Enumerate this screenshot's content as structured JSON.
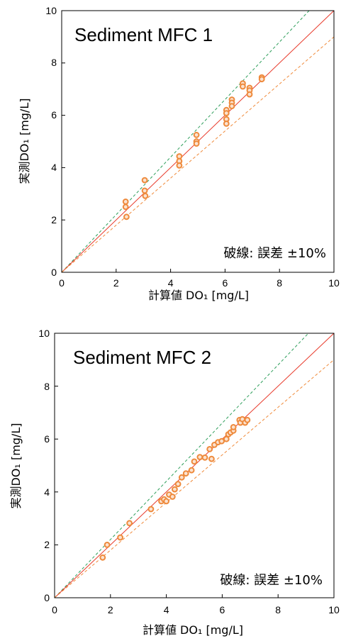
{
  "chart_data": [
    {
      "type": "scatter",
      "title": "Sediment MFC 1",
      "xlabel": "計算値 DO₁ [mg/L]",
      "ylabel": "実測DO₁ [mg/L]",
      "xlim": [
        0,
        10
      ],
      "ylim": [
        0,
        10
      ],
      "xticks": [
        "0",
        "2",
        "4",
        "6",
        "8",
        "10"
      ],
      "yticks": [
        "0",
        "2",
        "4",
        "6",
        "8",
        "10"
      ],
      "annotation": "破線: 誤差 ±10%",
      "reference_lines": [
        {
          "slope": 1.0,
          "style": "solid",
          "color": "#e8392a"
        },
        {
          "slope": 1.1,
          "style": "dashed",
          "color": "#2e9e5b"
        },
        {
          "slope": 0.9,
          "style": "dashed",
          "color": "#f08a3a"
        }
      ],
      "point_color": "#ee8a3c",
      "points": [
        [
          2.35,
          2.7
        ],
        [
          2.35,
          2.5
        ],
        [
          2.38,
          2.12
        ],
        [
          3.05,
          3.52
        ],
        [
          3.05,
          3.12
        ],
        [
          3.07,
          2.92
        ],
        [
          4.32,
          4.43
        ],
        [
          4.32,
          4.25
        ],
        [
          4.32,
          4.08
        ],
        [
          4.95,
          5.25
        ],
        [
          4.95,
          5.0
        ],
        [
          4.95,
          4.92
        ],
        [
          6.05,
          6.2
        ],
        [
          6.05,
          6.08
        ],
        [
          6.05,
          5.85
        ],
        [
          6.05,
          5.68
        ],
        [
          6.25,
          6.6
        ],
        [
          6.25,
          6.48
        ],
        [
          6.25,
          6.35
        ],
        [
          6.65,
          7.22
        ],
        [
          6.65,
          7.1
        ],
        [
          6.9,
          7.05
        ],
        [
          6.9,
          6.95
        ],
        [
          6.9,
          6.8
        ],
        [
          7.35,
          7.45
        ],
        [
          7.35,
          7.38
        ]
      ],
      "grid": false
    },
    {
      "type": "scatter",
      "title": "Sediment MFC 2",
      "xlabel": "計算値 DO₁ [mg/L]",
      "ylabel": "実測DO₁ [mg/L]",
      "xlim": [
        0,
        10
      ],
      "ylim": [
        0,
        10
      ],
      "xticks": [
        "0",
        "2",
        "4",
        "6",
        "8",
        "10"
      ],
      "yticks": [
        "0",
        "2",
        "4",
        "6",
        "8",
        "10"
      ],
      "annotation": "破線: 誤差 ±10%",
      "reference_lines": [
        {
          "slope": 1.0,
          "style": "solid",
          "color": "#e8392a"
        },
        {
          "slope": 1.1,
          "style": "dashed",
          "color": "#2e9e5b"
        },
        {
          "slope": 0.9,
          "style": "dashed",
          "color": "#f08a3a"
        }
      ],
      "point_color": "#ee8a3c",
      "points": [
        [
          1.72,
          1.52
        ],
        [
          1.88,
          2.0
        ],
        [
          2.35,
          2.28
        ],
        [
          2.68,
          2.82
        ],
        [
          3.45,
          3.35
        ],
        [
          3.82,
          3.65
        ],
        [
          3.92,
          3.72
        ],
        [
          4.0,
          3.65
        ],
        [
          4.1,
          3.9
        ],
        [
          4.22,
          3.82
        ],
        [
          4.3,
          4.1
        ],
        [
          4.42,
          4.3
        ],
        [
          4.55,
          4.55
        ],
        [
          4.7,
          4.7
        ],
        [
          4.9,
          4.82
        ],
        [
          5.0,
          5.15
        ],
        [
          5.2,
          5.32
        ],
        [
          5.38,
          5.3
        ],
        [
          5.55,
          5.62
        ],
        [
          5.62,
          5.25
        ],
        [
          5.72,
          5.78
        ],
        [
          5.85,
          5.88
        ],
        [
          5.98,
          5.92
        ],
        [
          6.15,
          6.0
        ],
        [
          6.22,
          6.18
        ],
        [
          6.3,
          6.25
        ],
        [
          6.4,
          6.32
        ],
        [
          6.4,
          6.45
        ],
        [
          6.62,
          6.72
        ],
        [
          6.65,
          6.62
        ],
        [
          6.72,
          6.75
        ],
        [
          6.82,
          6.62
        ],
        [
          6.9,
          6.72
        ]
      ],
      "grid": false
    }
  ]
}
